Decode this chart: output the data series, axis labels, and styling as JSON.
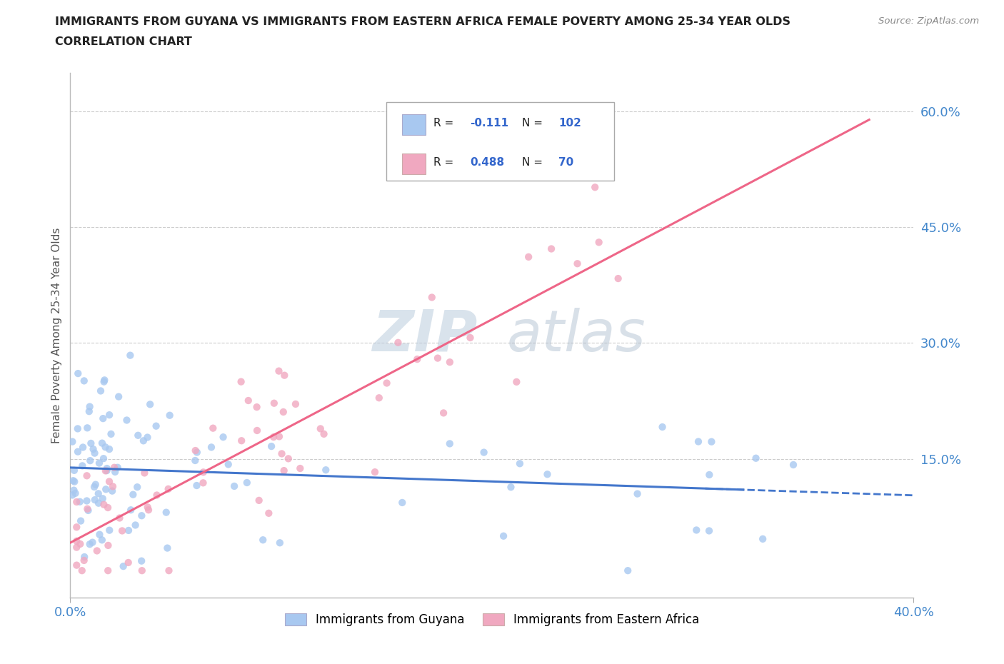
{
  "title_line1": "IMMIGRANTS FROM GUYANA VS IMMIGRANTS FROM EASTERN AFRICA FEMALE POVERTY AMONG 25-34 YEAR OLDS",
  "title_line2": "CORRELATION CHART",
  "source_text": "Source: ZipAtlas.com",
  "ylabel": "Female Poverty Among 25-34 Year Olds",
  "xlim": [
    0.0,
    0.4
  ],
  "ylim": [
    -0.03,
    0.65
  ],
  "yticks": [
    0.0,
    0.15,
    0.3,
    0.45,
    0.6
  ],
  "ytick_labels": [
    "",
    "15.0%",
    "30.0%",
    "45.0%",
    "60.0%"
  ],
  "xticks": [
    0.0,
    0.4
  ],
  "xtick_labels": [
    "0.0%",
    "40.0%"
  ],
  "hlines": [
    0.15,
    0.3,
    0.45,
    0.6
  ],
  "guyana_color": "#a8c8f0",
  "eastern_africa_color": "#f0a8c0",
  "guyana_line_color": "#4477cc",
  "eastern_africa_line_color": "#ee6688",
  "R_guyana": -0.111,
  "N_guyana": 102,
  "R_eastern_africa": 0.488,
  "N_eastern_africa": 70,
  "legend_color_blue": "#3366cc",
  "legend_color_pink": "#ee4477",
  "watermark_zip_color": "#bbccdd",
  "watermark_atlas_color": "#aabbcc",
  "background_color": "#ffffff",
  "title_color": "#222222",
  "tick_color": "#4488cc"
}
